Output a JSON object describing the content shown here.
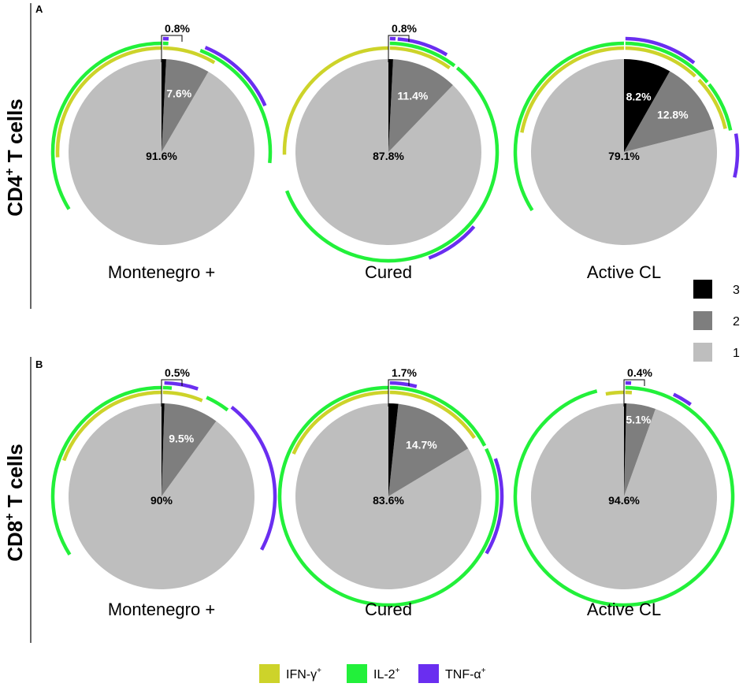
{
  "colors": {
    "f1": "#bebebe",
    "f2": "#7e7e7e",
    "f3": "#000000",
    "ifn": "#cdd32a",
    "il2": "#22f03a",
    "tnf": "#6a2ef0"
  },
  "chart_data": [
    {
      "type": "pie",
      "panel": "A",
      "row_title": "CD4",
      "row_title_sup": "+",
      "row_title_rest": " T cells",
      "pies": [
        {
          "group": "Montenegro +",
          "slices": [
            {
              "name": "1",
              "value": 91.6,
              "label": "91.6%"
            },
            {
              "name": "2",
              "value": 7.6,
              "label": "7.6%"
            },
            {
              "name": "3",
              "value": 0.8,
              "label": "0.8%"
            }
          ],
          "arcs": [
            {
              "cytokine": "IFN-γ",
              "ranges": [
                [
                  0.2,
                  8.5
                ],
                [
                  74.2,
                  100
                ]
              ]
            },
            {
              "cytokine": "IL-2",
              "ranges": [
                [
                  0.2,
                  1.0
                ],
                [
                  5.8,
                  26.6
                ],
                [
                  66.2,
                  100
                ]
              ]
            },
            {
              "cytokine": "TNF-α",
              "ranges": [
                [
                  0.2,
                  1.0
                ],
                [
                  6.3,
                  18.3
                ]
              ]
            }
          ]
        },
        {
          "group": "Cured",
          "slices": [
            {
              "name": "1",
              "value": 87.8,
              "label": "87.8%"
            },
            {
              "name": "2",
              "value": 11.4,
              "label": "11.4%"
            },
            {
              "name": "3",
              "value": 0.8,
              "label": "0.8%"
            }
          ],
          "arcs": [
            {
              "cytokine": "IFN-γ",
              "ranges": [
                [
                  0.2,
                  10.0
                ],
                [
                  74.6,
                  100
                ]
              ]
            },
            {
              "cytokine": "IL-2",
              "ranges": [
                [
                  0.2,
                  10.4
                ],
                [
                  10.9,
                  69.2
                ]
              ]
            },
            {
              "cytokine": "TNF-α",
              "ranges": [
                [
                  0.2,
                  1.0
                ],
                [
                  1.3,
                  8.6
                ],
                [
                  36.4,
                  44.2
                ]
              ]
            }
          ]
        },
        {
          "group": "Active CL",
          "slices": [
            {
              "name": "1",
              "value": 79.1,
              "label": "79.1%"
            },
            {
              "name": "2",
              "value": 12.8,
              "label": "12.8%"
            },
            {
              "name": "3",
              "value": 8.2,
              "label": "8.2%"
            }
          ],
          "arcs": [
            {
              "cytokine": "IFN-γ",
              "ranges": [
                [
                  0.2,
                  12.0
                ],
                [
                  12.8,
                  21.4
                ],
                [
                  78.0,
                  100
                ]
              ]
            },
            {
              "cytokine": "IL-2",
              "ranges": [
                [
                  0.2,
                  13.9
                ],
                [
                  14.3,
                  21.8
                ],
                [
                  66.0,
                  100
                ]
              ]
            },
            {
              "cytokine": "TNF-α",
              "ranges": [
                [
                  0.2,
                  10.6
                ],
                [
                  22.4,
                  28.6
                ]
              ]
            }
          ]
        }
      ]
    },
    {
      "type": "pie",
      "panel": "B",
      "row_title": "CD8",
      "row_title_sup": "+",
      "row_title_rest": " T cells",
      "pies": [
        {
          "group": "Montenegro +",
          "slices": [
            {
              "name": "1",
              "value": 90,
              "label": "90%"
            },
            {
              "name": "2",
              "value": 9.5,
              "label": "9.5%"
            },
            {
              "name": "3",
              "value": 0.5,
              "label": "0.5%"
            }
          ],
          "arcs": [
            {
              "cytokine": "IFN-γ",
              "ranges": [
                [
                  0.2,
                  6.4
                ],
                [
                  80.6,
                  100
                ]
              ]
            },
            {
              "cytokine": "IL-2",
              "ranges": [
                [
                  0.2,
                  1.5
                ],
                [
                  6.8,
                  10.4
                ],
                [
                  66.0,
                  100
                ]
              ]
            },
            {
              "cytokine": "TNF-α",
              "ranges": [
                [
                  0.4,
                  5.2
                ],
                [
                  10.6,
                  32.8
                ]
              ]
            }
          ]
        },
        {
          "group": "Cured",
          "slices": [
            {
              "name": "1",
              "value": 83.6,
              "label": "83.6%"
            },
            {
              "name": "2",
              "value": 14.7,
              "label": "14.7%"
            },
            {
              "name": "3",
              "value": 1.7,
              "label": "1.7%"
            }
          ],
          "arcs": [
            {
              "cytokine": "IFN-γ",
              "ranges": [
                [
                  0.2,
                  15.5
                ],
                [
                  81.7,
                  100
                ]
              ]
            },
            {
              "cytokine": "IL-2",
              "ranges": [
                [
                  0.2,
                  17.3
                ],
                [
                  17.8,
                  100
                ]
              ]
            },
            {
              "cytokine": "TNF-α",
              "ranges": [
                [
                  0.2,
                  4.0
                ],
                [
                  19.6,
                  33.4
                ]
              ]
            }
          ]
        },
        {
          "group": "Active CL",
          "slices": [
            {
              "name": "1",
              "value": 94.6,
              "label": "94.6%"
            },
            {
              "name": "2",
              "value": 5.1,
              "label": "5.1%"
            },
            {
              "name": "3",
              "value": 0.4,
              "label": "0.4%"
            }
          ],
          "arcs": [
            {
              "cytokine": "IFN-γ",
              "ranges": [
                [
                  0.2,
                  1.2
                ],
                [
                  97.2,
                  100
                ]
              ]
            },
            {
              "cytokine": "IL-2",
              "ranges": [
                [
                  0.2,
                  96.0
                ]
              ]
            },
            {
              "cytokine": "TNF-α",
              "ranges": [
                [
                  0.2,
                  1.0
                ],
                [
                  7.2,
                  10.0
                ]
              ]
            }
          ]
        }
      ]
    }
  ],
  "legend_fraction": [
    {
      "label": "3",
      "color_key": "f3"
    },
    {
      "label": "2",
      "color_key": "f2"
    },
    {
      "label": "1",
      "color_key": "f1"
    }
  ],
  "legend_cytokines": [
    {
      "label": "IFN-γ",
      "sup": "+",
      "color_key": "ifn"
    },
    {
      "label": "IL-2",
      "sup": "+",
      "color_key": "il2"
    },
    {
      "label": "TNF-α",
      "sup": "+",
      "color_key": "tnf"
    }
  ]
}
